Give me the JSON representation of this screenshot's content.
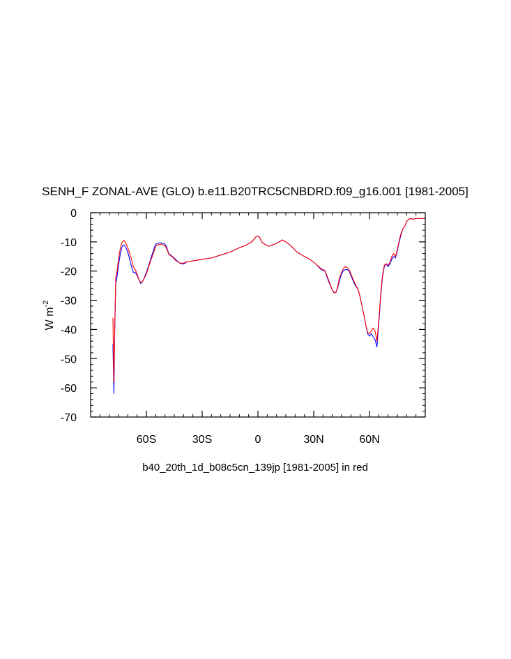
{
  "chart_data": {
    "type": "line",
    "title": "SENH_F ZONAL-AVE (GLO) b.e11.B20TRC5CNBDRD.f09_g16.001 [1981-2005]",
    "ylabel_base": "W m",
    "ylabel_exp": "-2",
    "caption": "b40_20th_1d_b08c5cn_139jp [1981-2005] in red",
    "xlim": [
      -90,
      90
    ],
    "ylim": [
      -70,
      0
    ],
    "x_ticks": [
      {
        "value": -60,
        "label": "60S"
      },
      {
        "value": -30,
        "label": "30S"
      },
      {
        "value": 0,
        "label": "0"
      },
      {
        "value": 30,
        "label": "30N"
      },
      {
        "value": 60,
        "label": "60N"
      }
    ],
    "y_ticks": [
      {
        "value": 0,
        "label": "0"
      },
      {
        "value": -10,
        "label": "-10"
      },
      {
        "value": -20,
        "label": "-20"
      },
      {
        "value": -30,
        "label": "-30"
      },
      {
        "value": -40,
        "label": "-40"
      },
      {
        "value": -50,
        "label": "-50"
      },
      {
        "value": -60,
        "label": "-60"
      },
      {
        "value": -70,
        "label": "-70"
      }
    ],
    "series": [
      {
        "color": "#0000ff",
        "points": [
          [
            -78,
            -45
          ],
          [
            -77.5,
            -62
          ],
          [
            -77,
            -40
          ],
          [
            -76.5,
            -24
          ],
          [
            -76,
            -23
          ],
          [
            -75,
            -18
          ],
          [
            -74,
            -14
          ],
          [
            -73,
            -11.5
          ],
          [
            -72,
            -11
          ],
          [
            -71,
            -12
          ],
          [
            -70,
            -13.5
          ],
          [
            -69,
            -16
          ],
          [
            -68,
            -18.5
          ],
          [
            -67,
            -20.5
          ],
          [
            -66,
            -20.5
          ],
          [
            -65,
            -21.5
          ],
          [
            -64,
            -23
          ],
          [
            -63,
            -24.3
          ],
          [
            -62,
            -23.5
          ],
          [
            -60,
            -20.5
          ],
          [
            -58,
            -16.5
          ],
          [
            -56,
            -12.5
          ],
          [
            -55,
            -10.8
          ],
          [
            -54,
            -10.5
          ],
          [
            -52,
            -10.3
          ],
          [
            -50,
            -10.8
          ],
          [
            -49,
            -12
          ],
          [
            -48,
            -14
          ],
          [
            -46,
            -15
          ],
          [
            -44,
            -16.2
          ],
          [
            -42,
            -17.3
          ],
          [
            -40,
            -17.6
          ],
          [
            -38,
            -16.8
          ],
          [
            -35,
            -16.5
          ],
          [
            -30,
            -16
          ],
          [
            -25,
            -15.5
          ],
          [
            -20,
            -14.5
          ],
          [
            -15,
            -13.5
          ],
          [
            -10,
            -12
          ],
          [
            -6,
            -11
          ],
          [
            -3,
            -9.8
          ],
          [
            -1,
            -8.2
          ],
          [
            0,
            -8
          ],
          [
            1,
            -8.5
          ],
          [
            2,
            -10
          ],
          [
            4,
            -11
          ],
          [
            6,
            -11.5
          ],
          [
            8,
            -11
          ],
          [
            10,
            -10.5
          ],
          [
            12,
            -9.8
          ],
          [
            13,
            -9.3
          ],
          [
            15,
            -10
          ],
          [
            18,
            -11.5
          ],
          [
            21,
            -13.5
          ],
          [
            25,
            -15
          ],
          [
            28,
            -16
          ],
          [
            31,
            -17.5
          ],
          [
            34,
            -19.5
          ],
          [
            36,
            -20
          ],
          [
            38,
            -23.5
          ],
          [
            40,
            -26.5
          ],
          [
            41,
            -27.3
          ],
          [
            42,
            -27.3
          ],
          [
            43,
            -25.5
          ],
          [
            44,
            -23
          ],
          [
            45,
            -21
          ],
          [
            46,
            -19.8
          ],
          [
            47,
            -19.5
          ],
          [
            48,
            -19.5
          ],
          [
            49,
            -20
          ],
          [
            50,
            -21.5
          ],
          [
            52,
            -24.5
          ],
          [
            54,
            -26.5
          ],
          [
            55,
            -29
          ],
          [
            56,
            -32
          ],
          [
            57,
            -35
          ],
          [
            58,
            -38.5
          ],
          [
            59,
            -41.5
          ],
          [
            60,
            -42.3
          ],
          [
            61,
            -41.5
          ],
          [
            62,
            -42.5
          ],
          [
            63,
            -43.5
          ],
          [
            64,
            -46
          ],
          [
            65,
            -38
          ],
          [
            66,
            -29
          ],
          [
            67,
            -22
          ],
          [
            68,
            -18.5
          ],
          [
            69,
            -17.5
          ],
          [
            70,
            -18.5
          ],
          [
            71,
            -17.5
          ],
          [
            72,
            -16
          ],
          [
            73,
            -15
          ],
          [
            74,
            -15.5
          ],
          [
            75,
            -13
          ],
          [
            76,
            -10
          ],
          [
            77,
            -7.5
          ],
          [
            78,
            -5.5
          ],
          [
            79,
            -4.5
          ],
          [
            80,
            -3
          ],
          [
            81,
            -2.3
          ],
          [
            82,
            -2
          ],
          [
            83,
            -2.2
          ],
          [
            85,
            -2
          ],
          [
            88,
            -2
          ],
          [
            90,
            -2
          ]
        ]
      },
      {
        "color": "#ff0000",
        "points": [
          [
            -78,
            -36
          ],
          [
            -77.5,
            -58
          ],
          [
            -77,
            -38
          ],
          [
            -76.5,
            -22
          ],
          [
            -76,
            -21
          ],
          [
            -75,
            -16
          ],
          [
            -74,
            -12
          ],
          [
            -73,
            -10
          ],
          [
            -72,
            -9.5
          ],
          [
            -71,
            -10.5
          ],
          [
            -70,
            -12
          ],
          [
            -69,
            -14
          ],
          [
            -68,
            -16
          ],
          [
            -67,
            -18.5
          ],
          [
            -66,
            -19.5
          ],
          [
            -65,
            -21
          ],
          [
            -64,
            -23
          ],
          [
            -63,
            -24
          ],
          [
            -62,
            -23.5
          ],
          [
            -60,
            -21
          ],
          [
            -58,
            -17
          ],
          [
            -56,
            -13.5
          ],
          [
            -55,
            -11.5
          ],
          [
            -54,
            -11
          ],
          [
            -52,
            -10.8
          ],
          [
            -50,
            -11.3
          ],
          [
            -49,
            -12.5
          ],
          [
            -48,
            -14.2
          ],
          [
            -46,
            -15.2
          ],
          [
            -44,
            -16.5
          ],
          [
            -42,
            -17.2
          ],
          [
            -40,
            -17.3
          ],
          [
            -38,
            -16.8
          ],
          [
            -35,
            -16.5
          ],
          [
            -30,
            -16
          ],
          [
            -25,
            -15.5
          ],
          [
            -20,
            -14.5
          ],
          [
            -15,
            -13.5
          ],
          [
            -10,
            -12
          ],
          [
            -6,
            -11
          ],
          [
            -3,
            -9.8
          ],
          [
            -1,
            -8.2
          ],
          [
            0,
            -8
          ],
          [
            1,
            -8.5
          ],
          [
            2,
            -10
          ],
          [
            4,
            -11
          ],
          [
            6,
            -11.5
          ],
          [
            8,
            -11
          ],
          [
            10,
            -10.5
          ],
          [
            12,
            -9.8
          ],
          [
            13,
            -9.3
          ],
          [
            15,
            -10
          ],
          [
            18,
            -11.5
          ],
          [
            21,
            -13.5
          ],
          [
            25,
            -15
          ],
          [
            28,
            -16
          ],
          [
            31,
            -17.5
          ],
          [
            34,
            -19.2
          ],
          [
            36,
            -19.8
          ],
          [
            38,
            -23
          ],
          [
            40,
            -26.5
          ],
          [
            41,
            -27.5
          ],
          [
            42,
            -27.3
          ],
          [
            43,
            -25
          ],
          [
            44,
            -22
          ],
          [
            45,
            -20.5
          ],
          [
            46,
            -19
          ],
          [
            47,
            -18.5
          ],
          [
            48,
            -18.8
          ],
          [
            49,
            -19.5
          ],
          [
            50,
            -21
          ],
          [
            52,
            -24
          ],
          [
            54,
            -26.5
          ],
          [
            55,
            -29
          ],
          [
            56,
            -32
          ],
          [
            57,
            -35
          ],
          [
            58,
            -38.5
          ],
          [
            59,
            -41
          ],
          [
            60,
            -41.5
          ],
          [
            61,
            -40.5
          ],
          [
            62,
            -39.5
          ],
          [
            63,
            -40.5
          ],
          [
            64,
            -44
          ],
          [
            65,
            -37
          ],
          [
            66,
            -28
          ],
          [
            67,
            -21.5
          ],
          [
            68,
            -18
          ],
          [
            69,
            -17.5
          ],
          [
            70,
            -18
          ],
          [
            71,
            -17
          ],
          [
            72,
            -15
          ],
          [
            73,
            -14
          ],
          [
            74,
            -15
          ],
          [
            75,
            -12.5
          ],
          [
            76,
            -9.5
          ],
          [
            77,
            -7
          ],
          [
            78,
            -5.5
          ],
          [
            79,
            -4.5
          ],
          [
            80,
            -3
          ],
          [
            81,
            -2.3
          ],
          [
            82,
            -2
          ],
          [
            83,
            -2.2
          ],
          [
            85,
            -2
          ],
          [
            88,
            -2
          ],
          [
            90,
            -2
          ]
        ]
      }
    ]
  }
}
